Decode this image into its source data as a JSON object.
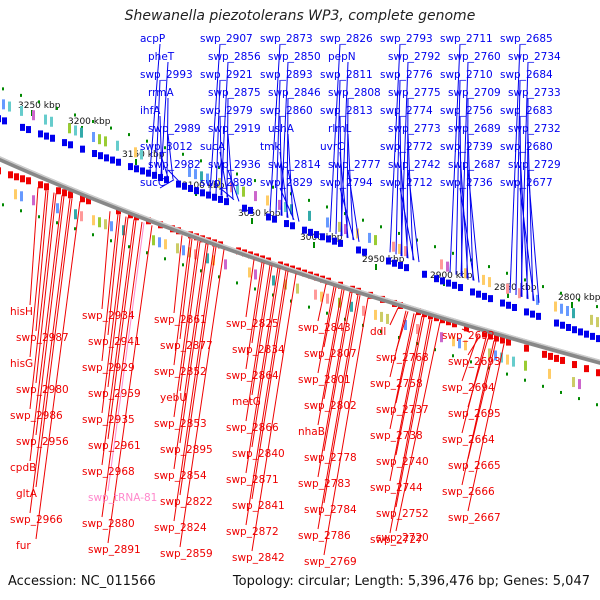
{
  "title": "Shewanella piezotolerans WP3, complete genome",
  "footer": {
    "accession": "Accession: NC_011566",
    "summary": "Topology: circular; Length: 5,396,476 bp; Genes: 5,047"
  },
  "colors": {
    "forward": "#0000ee",
    "reverse": "#ee0000",
    "rna": "#ff88cc",
    "backbone": "#888888"
  },
  "ticks": [
    "3250 kbp",
    "3200 kbp",
    "3150 kbp",
    "3100 kbp",
    "3050 kbp",
    "3000 kbp",
    "2950 kbp",
    "2900 kbp",
    "2850 kbp",
    "2800 kbp"
  ],
  "top_labels": [
    "acpP",
    "pheT",
    "swp_2993",
    "rrmA",
    "ihfA",
    "swp_2989",
    "swp_3012",
    "swp_2982",
    "sucC",
    "swp_2907",
    "swp_2856",
    "swp_2921",
    "swp_2875",
    "swp_2979",
    "swp_2919",
    "sucA",
    "swp_2936",
    "swp_2898",
    "swp_2873",
    "swp_2850",
    "swp_2893",
    "swp_2846",
    "swp_2860",
    "ushA",
    "tmk",
    "swp_2814",
    "swp_2829",
    "swp_2826",
    "pepN",
    "swp_2811",
    "swp_2808",
    "swp_2813",
    "rlmL",
    "uvrC",
    "swp_2777",
    "swp_2794",
    "swp_2793",
    "swp_2792",
    "swp_2776",
    "swp_2775",
    "swp_2774",
    "swp_2773",
    "swp_2772",
    "swp_2742",
    "swp_2712",
    "swp_2711",
    "swp_2760",
    "swp_2710",
    "swp_2709",
    "swp_2756",
    "swp_2689",
    "swp_2739",
    "swp_2687",
    "swp_2736",
    "swp_2685",
    "swp_2734",
    "swp_2684",
    "swp_2733",
    "swp_2683",
    "swp_2732",
    "swp_2680",
    "swp_2729",
    "swp_2677"
  ],
  "bottom_labels": [
    "hisH",
    "swp_2987",
    "hisG",
    "swp_2980",
    "swp_2986",
    "swp_2956",
    "cpdB",
    "gltA",
    "swp_2966",
    "fur",
    "swp_2934",
    "swp_2941",
    "swp_2929",
    "swp_2959",
    "swp_2935",
    "swp_2961",
    "swp_2968",
    "swp_tRNA-81",
    "swp_2880",
    "swp_2891",
    "swp_2861",
    "swp_2877",
    "swp_2852",
    "yebU",
    "swp_2853",
    "swp_2895",
    "swp_2854",
    "swp_2822",
    "swp_2824",
    "swp_2859",
    "swp_2825",
    "swp_2834",
    "swp_2864",
    "metG",
    "swp_2866",
    "swp_2840",
    "swp_2871",
    "swp_2841",
    "swp_2872",
    "swp_2842",
    "swp_2843",
    "swp_2807",
    "swp_2801",
    "swp_2802",
    "nhaB",
    "swp_2778",
    "swp_2783",
    "swp_2784",
    "swp_2786",
    "swp_2769",
    "ddl",
    "swp_2768",
    "swp_2758",
    "swp_2737",
    "swp_2738",
    "swp_2740",
    "swp_2744",
    "swp_2752",
    "swp_2727",
    "swp_2720",
    "swp_2692",
    "swp_2693",
    "swp_2694",
    "swp_2695",
    "swp_2664",
    "swp_2665",
    "swp_2666",
    "swp_2667"
  ]
}
